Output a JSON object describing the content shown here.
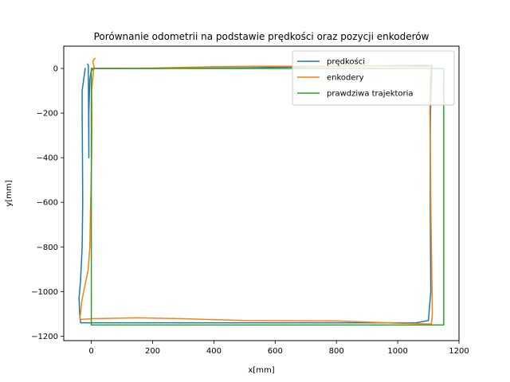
{
  "chart_data": {
    "type": "line",
    "title": "Porównanie odometrii na podstawie prędkości oraz pozycji enkoderów",
    "xlabel": "x[mm]",
    "ylabel": "y[mm]",
    "xlim": [
      -90,
      1200
    ],
    "ylim": [
      -1220,
      100
    ],
    "xticks": [
      0,
      200,
      400,
      600,
      800,
      1000,
      1200
    ],
    "yticks": [
      0,
      -200,
      -400,
      -600,
      -800,
      -1000,
      -1200
    ],
    "xtick_labels": [
      "0",
      "200",
      "400",
      "600",
      "800",
      "1000",
      "1200"
    ],
    "ytick_labels": [
      "0",
      "−200",
      "−400",
      "−600",
      "−800",
      "−1000",
      "−1200"
    ],
    "grid": false,
    "legend_position": "top-right",
    "series": [
      {
        "name": "prędkości",
        "color": "#1f77b4",
        "x": [
          -20,
          -30,
          -30,
          -29,
          -28,
          -30,
          -35,
          -40,
          -38,
          -35,
          0,
          200,
          400,
          600,
          800,
          1000,
          1060,
          1100,
          1108,
          1107,
          1106,
          1106,
          1107,
          1110,
          1112,
          1110,
          1100,
          900,
          700,
          600,
          500,
          400,
          300,
          200,
          100,
          40,
          20,
          10,
          0,
          -5,
          -8,
          -8,
          -10,
          -12
        ],
        "y": [
          0,
          -100,
          -200,
          -400,
          -600,
          -800,
          -950,
          -1030,
          -1100,
          -1140,
          -1140,
          -1140,
          -1140,
          -1140,
          -1140,
          -1140,
          -1140,
          -1130,
          -1000,
          -800,
          -600,
          -400,
          -200,
          -50,
          10,
          15,
          10,
          12,
          8,
          5,
          3,
          2,
          1,
          0,
          0,
          0,
          0,
          0,
          -10,
          -50,
          -200,
          -400,
          15,
          20
        ]
      },
      {
        "name": "enkodery",
        "color": "#ff7f0e",
        "x": [
          8,
          1,
          2,
          1,
          -2,
          -5,
          -10,
          -25,
          -32,
          -35,
          -38,
          -35,
          0,
          150,
          300,
          500,
          800,
          1000,
          1100,
          1110,
          1113,
          1112,
          1110,
          1108,
          1107,
          1105,
          1106,
          1108,
          1110,
          1108,
          1095,
          900,
          700,
          550,
          400,
          300,
          200,
          50,
          10,
          5,
          8,
          12
        ],
        "y": [
          0,
          -100,
          -200,
          -400,
          -600,
          -800,
          -900,
          -1000,
          -1050,
          -1100,
          -1120,
          -1125,
          -1122,
          -1118,
          -1122,
          -1130,
          -1132,
          -1142,
          -1145,
          -1145,
          -1100,
          -1000,
          -800,
          -600,
          -400,
          -200,
          -50,
          0,
          5,
          12,
          15,
          12,
          10,
          10,
          8,
          5,
          2,
          0,
          0,
          30,
          40,
          45
        ]
      },
      {
        "name": "prawdziwa trajektoria",
        "color": "#2ca02c",
        "x": [
          0,
          1150,
          1150,
          0,
          0
        ],
        "y": [
          0,
          0,
          -1150,
          -1150,
          0
        ]
      }
    ]
  }
}
